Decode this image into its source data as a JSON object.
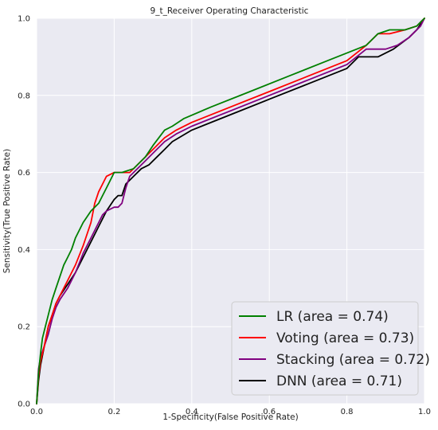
{
  "chart_data": {
    "type": "line",
    "title": "9_t_Receiver Operating Characteristic",
    "xlabel": "1-Specificity(False Positive Rate)",
    "ylabel": "Sensitivity(True Positive Rate)",
    "xlim": [
      0,
      1
    ],
    "ylim": [
      0,
      1
    ],
    "xticks": [
      0.0,
      0.2,
      0.4,
      0.6,
      0.8,
      1.0
    ],
    "yticks": [
      0.0,
      0.2,
      0.4,
      0.6,
      0.8,
      1.0
    ],
    "xtick_labels": [
      "0.0",
      "0.2",
      "0.4",
      "0.6",
      "0.8",
      "1.0"
    ],
    "ytick_labels": [
      "0.0",
      "0.2",
      "0.4",
      "0.6",
      "0.8",
      "1.0"
    ],
    "grid": true,
    "background": "#eaeaf2",
    "legend_position": "bottom-right",
    "series": [
      {
        "name": "LR (area = 0.74)",
        "color": "#008000",
        "x": [
          0,
          0.005,
          0.01,
          0.015,
          0.02,
          0.03,
          0.04,
          0.05,
          0.06,
          0.07,
          0.08,
          0.09,
          0.1,
          0.12,
          0.14,
          0.15,
          0.16,
          0.17,
          0.18,
          0.2,
          0.22,
          0.25,
          0.28,
          0.3,
          0.33,
          0.35,
          0.38,
          0.45,
          0.55,
          0.65,
          0.75,
          0.85,
          0.88,
          0.91,
          0.95,
          0.98,
          0.99,
          1.0
        ],
        "y": [
          0,
          0.08,
          0.13,
          0.17,
          0.19,
          0.23,
          0.27,
          0.3,
          0.33,
          0.36,
          0.38,
          0.4,
          0.43,
          0.47,
          0.5,
          0.51,
          0.52,
          0.54,
          0.56,
          0.6,
          0.6,
          0.61,
          0.64,
          0.67,
          0.71,
          0.72,
          0.74,
          0.77,
          0.81,
          0.85,
          0.89,
          0.93,
          0.96,
          0.97,
          0.97,
          0.98,
          0.99,
          1.0
        ]
      },
      {
        "name": "Voting (area = 0.73)",
        "color": "#ff0000",
        "x": [
          0,
          0.005,
          0.01,
          0.02,
          0.03,
          0.04,
          0.05,
          0.06,
          0.07,
          0.08,
          0.1,
          0.12,
          0.14,
          0.15,
          0.16,
          0.17,
          0.18,
          0.2,
          0.24,
          0.26,
          0.28,
          0.3,
          0.33,
          0.36,
          0.4,
          0.5,
          0.6,
          0.7,
          0.8,
          0.85,
          0.88,
          0.91,
          0.95,
          0.98,
          1.0
        ],
        "y": [
          0,
          0.07,
          0.11,
          0.15,
          0.2,
          0.23,
          0.26,
          0.28,
          0.3,
          0.32,
          0.36,
          0.41,
          0.47,
          0.52,
          0.55,
          0.57,
          0.59,
          0.6,
          0.6,
          0.62,
          0.64,
          0.66,
          0.69,
          0.71,
          0.73,
          0.77,
          0.81,
          0.85,
          0.89,
          0.93,
          0.96,
          0.96,
          0.97,
          0.98,
          1.0
        ]
      },
      {
        "name": "Stacking (area = 0.72)",
        "color": "#800080",
        "x": [
          0,
          0.005,
          0.01,
          0.02,
          0.03,
          0.04,
          0.05,
          0.06,
          0.08,
          0.1,
          0.12,
          0.14,
          0.16,
          0.17,
          0.18,
          0.2,
          0.21,
          0.22,
          0.23,
          0.24,
          0.26,
          0.28,
          0.3,
          0.33,
          0.36,
          0.4,
          0.5,
          0.6,
          0.7,
          0.8,
          0.85,
          0.9,
          0.93,
          0.96,
          0.99,
          1.0
        ],
        "y": [
          0,
          0.09,
          0.12,
          0.15,
          0.18,
          0.22,
          0.25,
          0.27,
          0.3,
          0.34,
          0.39,
          0.43,
          0.47,
          0.49,
          0.5,
          0.51,
          0.51,
          0.52,
          0.56,
          0.59,
          0.61,
          0.63,
          0.65,
          0.68,
          0.7,
          0.72,
          0.76,
          0.8,
          0.84,
          0.88,
          0.92,
          0.92,
          0.93,
          0.95,
          0.98,
          1.0
        ]
      },
      {
        "name": "DNN (area = 0.71)",
        "color": "#000000",
        "x": [
          0,
          0.005,
          0.01,
          0.02,
          0.03,
          0.04,
          0.05,
          0.06,
          0.08,
          0.1,
          0.12,
          0.14,
          0.16,
          0.18,
          0.2,
          0.21,
          0.22,
          0.23,
          0.25,
          0.27,
          0.29,
          0.31,
          0.33,
          0.35,
          0.4,
          0.5,
          0.6,
          0.7,
          0.8,
          0.83,
          0.88,
          0.92,
          0.96,
          0.98,
          1.0
        ],
        "y": [
          0,
          0.06,
          0.1,
          0.15,
          0.2,
          0.23,
          0.26,
          0.28,
          0.31,
          0.34,
          0.38,
          0.42,
          0.46,
          0.5,
          0.53,
          0.54,
          0.54,
          0.57,
          0.59,
          0.61,
          0.62,
          0.64,
          0.66,
          0.68,
          0.71,
          0.75,
          0.79,
          0.83,
          0.87,
          0.9,
          0.9,
          0.92,
          0.95,
          0.97,
          1.0
        ]
      }
    ]
  }
}
